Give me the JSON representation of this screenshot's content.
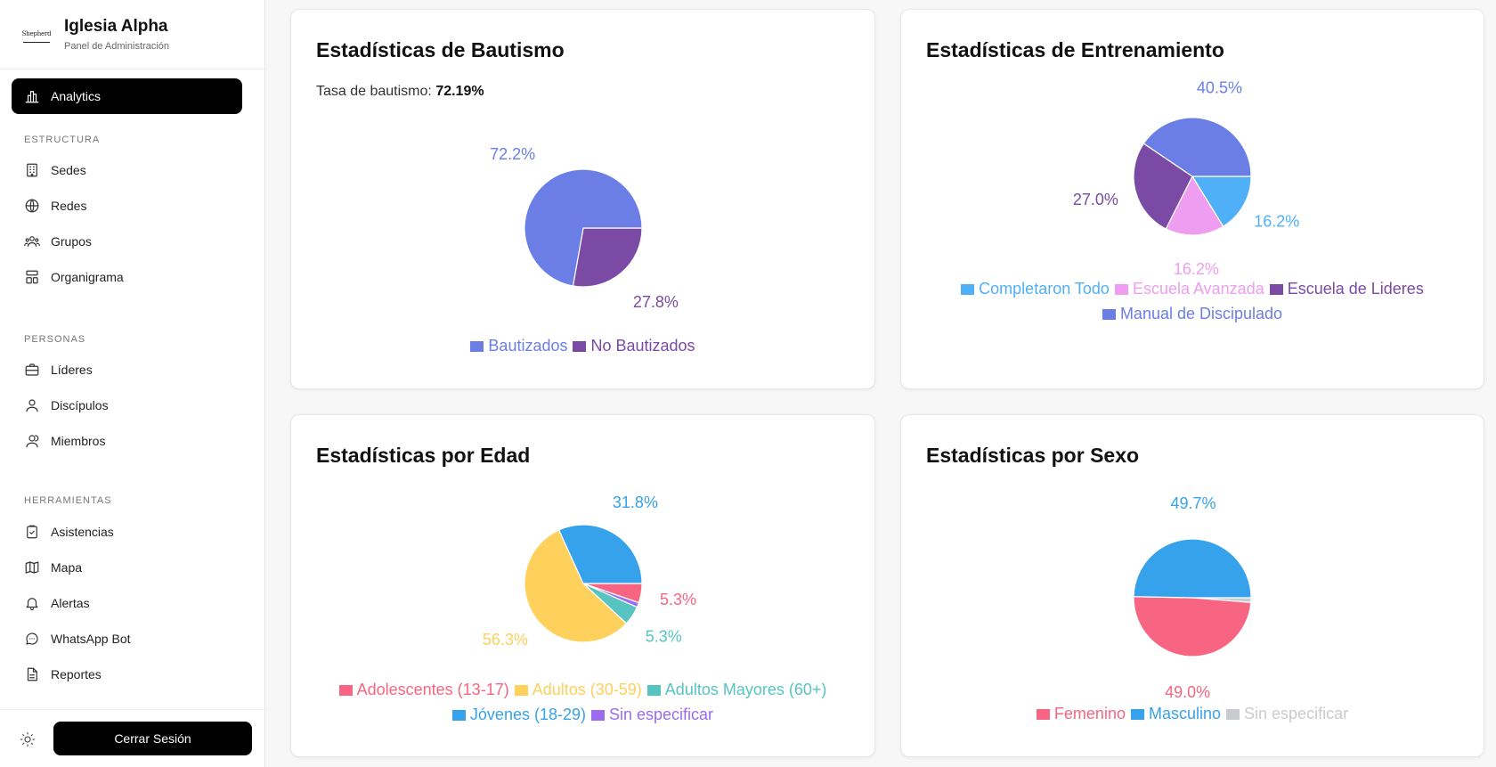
{
  "brand": {
    "logo_text": "Shepherd",
    "name": "Iglesia Alpha",
    "subtitle": "Panel de Administración"
  },
  "nav": {
    "active": {
      "label": "Analytics",
      "icon": "bar-chart-icon"
    },
    "sections": [
      {
        "label": "ESTRUCTURA",
        "items": [
          {
            "label": "Sedes",
            "icon": "building-icon"
          },
          {
            "label": "Redes",
            "icon": "globe-icon"
          },
          {
            "label": "Grupos",
            "icon": "users-icon"
          },
          {
            "label": "Organigrama",
            "icon": "org-chart-icon"
          }
        ]
      },
      {
        "label": "PERSONAS",
        "items": [
          {
            "label": "Líderes",
            "icon": "briefcase-icon"
          },
          {
            "label": "Discípulos",
            "icon": "user-icon"
          },
          {
            "label": "Miembros",
            "icon": "user-group-icon"
          }
        ]
      },
      {
        "label": "HERRAMIENTAS",
        "items": [
          {
            "label": "Asistencias",
            "icon": "clipboard-check-icon"
          },
          {
            "label": "Mapa",
            "icon": "map-icon"
          },
          {
            "label": "Alertas",
            "icon": "bell-icon"
          },
          {
            "label": "WhatsApp Bot",
            "icon": "chat-bubble-icon"
          },
          {
            "label": "Reportes",
            "icon": "document-icon"
          }
        ]
      }
    ]
  },
  "footer": {
    "theme_icon": "sun-icon",
    "logout_label": "Cerrar Sesión"
  },
  "cards": {
    "bautismo": {
      "title": "Estadísticas de Bautismo",
      "rate_label": "Tasa de bautismo:",
      "rate_value": "72.19%"
    },
    "entrenamiento": {
      "title": "Estadísticas de Entrenamiento"
    },
    "edad": {
      "title": "Estadísticas por Edad"
    },
    "sexo": {
      "title": "Estadísticas por Sexo"
    }
  },
  "chart_data": [
    {
      "type": "pie",
      "title": "Estadísticas de Bautismo",
      "categories": [
        "Bautizados",
        "No Bautizados"
      ],
      "values": [
        72.2,
        27.8
      ],
      "labels": [
        "72.2%",
        "27.8%"
      ],
      "colors": [
        "#6b7ee6",
        "#7b4aa5"
      ]
    },
    {
      "type": "pie",
      "title": "Estadísticas de Entrenamiento",
      "categories": [
        "Completaron Todo",
        "Escuela Avanzada",
        "Escuela de Lideres",
        "Manual de Discipulado"
      ],
      "values": [
        16.2,
        16.2,
        27.0,
        40.5
      ],
      "labels": [
        "16.2%",
        "16.2%",
        "27.0%",
        "40.5%"
      ],
      "colors": [
        "#4fb0f7",
        "#ee9df0",
        "#7b4aa5",
        "#6b7ee6"
      ]
    },
    {
      "type": "pie",
      "title": "Estadísticas por Edad",
      "categories": [
        "Adolescentes (13-17)",
        "Adultos (30-59)",
        "Adultos Mayores (60+)",
        "Jóvenes (18-29)",
        "Sin especificar"
      ],
      "values": [
        5.3,
        56.3,
        5.3,
        31.8,
        1.3
      ],
      "labels": [
        "5.3%",
        "56.3%",
        "5.3%",
        "31.8%",
        ""
      ],
      "colors": [
        "#f76582",
        "#fed05c",
        "#57c4c2",
        "#36a2eb",
        "#9b6bf0"
      ]
    },
    {
      "type": "pie",
      "title": "Estadísticas por Sexo",
      "categories": [
        "Femenino",
        "Masculino",
        "Sin especificar"
      ],
      "values": [
        49.0,
        49.7,
        1.3
      ],
      "labels": [
        "49.0%",
        "49.7%",
        ""
      ],
      "colors": [
        "#f76582",
        "#36a2eb",
        "#c9cbcf"
      ]
    }
  ]
}
